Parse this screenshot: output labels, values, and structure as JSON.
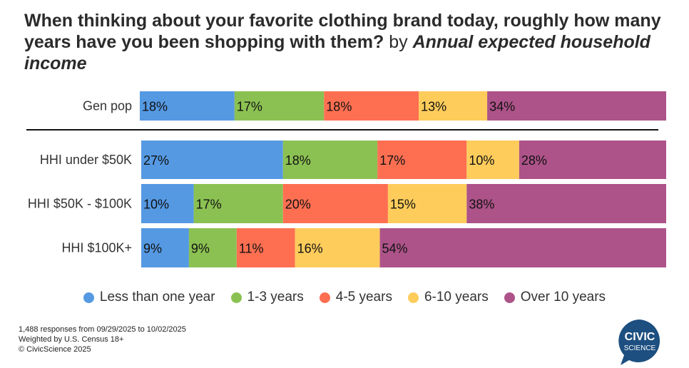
{
  "chart_data": {
    "type": "bar",
    "orientation": "horizontal-stacked",
    "title": "When thinking about your favorite clothing brand today, roughly how many years have you been shopping with them?",
    "title_by": "by",
    "subtitle": "Annual expected household income",
    "categories": [
      "Gen pop",
      "HHI under $50K",
      "HHI $50K - $100K",
      "HHI $100K+"
    ],
    "series": [
      {
        "name": "Less than one year",
        "color": "#5599e3",
        "values": [
          18,
          27,
          10,
          9
        ]
      },
      {
        "name": "1-3 years",
        "color": "#8bc152",
        "values": [
          17,
          18,
          17,
          9
        ]
      },
      {
        "name": "4-5 years",
        "color": "#fe6f52",
        "values": [
          18,
          17,
          20,
          11
        ]
      },
      {
        "name": "6-10 years",
        "color": "#fecc5b",
        "values": [
          13,
          10,
          15,
          16
        ]
      },
      {
        "name": "Over 10 years",
        "color": "#ad5389",
        "values": [
          34,
          28,
          38,
          54
        ]
      }
    ],
    "xlim": [
      0,
      100
    ],
    "legend": "bottom",
    "grid": false
  },
  "footer": [
    "1,488 responses from 09/29/2025 to 10/02/2025",
    "Weighted by U.S. Census 18+",
    "© CivicScience 2025"
  ],
  "logo": {
    "line1": "CIVIC",
    "line2": "SCIENCE",
    "color": "#1d4f80"
  }
}
